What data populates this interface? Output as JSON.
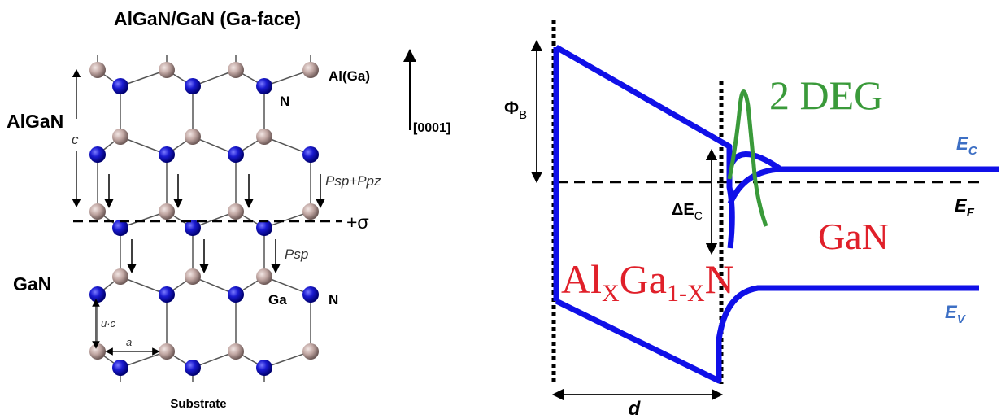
{
  "left_panel": {
    "title": "AlGaN/GaN (Ga-face)",
    "layer_top": "AlGaN",
    "layer_bottom": "GaN",
    "lattice_c": "c",
    "lattice_uc": "u·c",
    "lattice_a": "a",
    "atom_top_label": "Al(Ga)",
    "atom_n_top": "N",
    "atom_ga": "Ga",
    "atom_n_bottom": "N",
    "direction": "[0001]",
    "polarization_top": "Psp+Ppz",
    "polarization_bottom": "Psp",
    "sheet_charge": "+σ",
    "substrate": "Substrate",
    "colors": {
      "nitrogen": "#1a1ad0",
      "metal": "#c2a8a4"
    }
  },
  "right_panel": {
    "barrier_label": "Φ",
    "barrier_sub": "B",
    "band_offset_label": "ΔE",
    "band_offset_sub": "C",
    "deg_label": "2 DEG",
    "algan_main": "Al",
    "algan_x1": "X",
    "algan_ga": "Ga",
    "algan_sub2": "1-X",
    "algan_n": "N",
    "gan_label": "GaN",
    "ec_main": "E",
    "ec_sub": "C",
    "ef_main": "E",
    "ef_sub": "F",
    "ev_main": "E",
    "ev_sub": "V",
    "thickness_label": "d",
    "colors": {
      "band": "#1010e8",
      "deg": "#3a9a3a",
      "material": "#e0202a",
      "band_label": "#3d6fc4"
    }
  }
}
